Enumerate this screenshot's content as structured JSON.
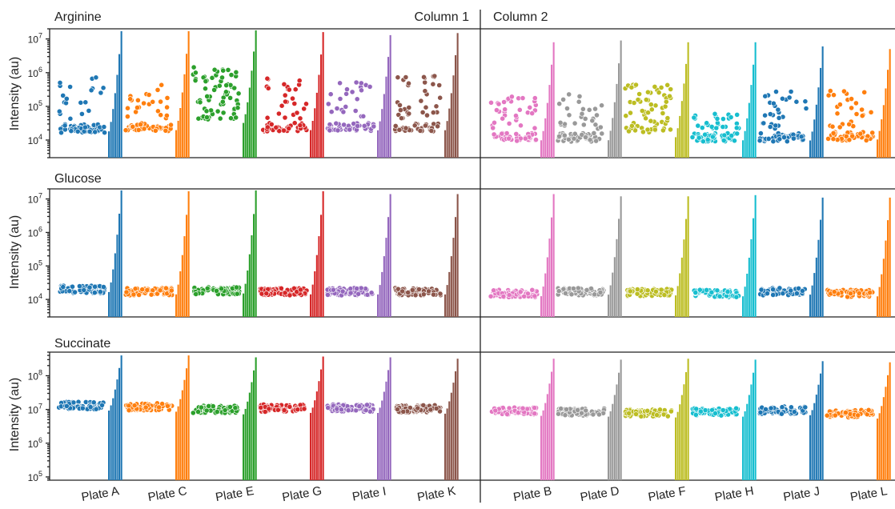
{
  "chart_data": {
    "type": "scatter",
    "column_headers": [
      "Column 1",
      "Column 2"
    ],
    "ylabel": "Intensity (au)",
    "yscale": "log",
    "panels": [
      {
        "title": "Arginine",
        "ylim": [
          3000,
          20000000
        ],
        "ticks": [
          {
            "value": 10000,
            "base": "10",
            "exp": "4"
          },
          {
            "value": 100000,
            "base": "10",
            "exp": "5"
          },
          {
            "value": 1000000,
            "base": "10",
            "exp": "6"
          },
          {
            "value": 10000000,
            "base": "10",
            "exp": "7"
          }
        ],
        "series": [
          {
            "plate": "Plate A",
            "color": "#1f77b4",
            "spread": "bimodal",
            "low": 22000,
            "high": 800000,
            "bar_max": 17000000
          },
          {
            "plate": "Plate C",
            "color": "#ff7f0e",
            "spread": "bimodal",
            "low": 24000,
            "high": 500000,
            "bar_max": 17000000
          },
          {
            "plate": "Plate E",
            "color": "#2ca02c",
            "spread": "wide",
            "low": 40000,
            "high": 1500000,
            "bar_max": 18000000
          },
          {
            "plate": "Plate G",
            "color": "#d62728",
            "spread": "bimodal",
            "low": 24000,
            "high": 700000,
            "bar_max": 16000000
          },
          {
            "plate": "Plate I",
            "color": "#9467bd",
            "spread": "bimodal",
            "low": 24000,
            "high": 600000,
            "bar_max": 13000000
          },
          {
            "plate": "Plate K",
            "color": "#8c564b",
            "spread": "bimodal",
            "low": 24000,
            "high": 1000000,
            "bar_max": 15000000
          },
          {
            "plate": "Plate B",
            "color": "#e377c2",
            "spread": "bimodal",
            "low": 12000,
            "high": 200000,
            "bar_max": 8000000
          },
          {
            "plate": "Plate D",
            "color": "#999999",
            "spread": "bimodal",
            "low": 12000,
            "high": 250000,
            "bar_max": 9000000
          },
          {
            "plate": "Plate F",
            "color": "#bcbd22",
            "spread": "wide",
            "low": 15000,
            "high": 450000,
            "bar_max": 8000000
          },
          {
            "plate": "Plate H",
            "color": "#17becf",
            "spread": "bimodal",
            "low": 12000,
            "high": 60000,
            "bar_max": 8000000
          },
          {
            "plate": "Plate J",
            "color": "#1f77b4",
            "spread": "bimodal",
            "low": 12000,
            "high": 300000,
            "bar_max": 6000000
          },
          {
            "plate": "Plate L",
            "color": "#ff7f0e",
            "spread": "bimodal",
            "low": 13000,
            "high": 300000,
            "bar_max": 5000000
          }
        ]
      },
      {
        "title": "Glucose",
        "ylim": [
          3000,
          20000000
        ],
        "ticks": [
          {
            "value": 10000,
            "base": "10",
            "exp": "4"
          },
          {
            "value": 100000,
            "base": "10",
            "exp": "5"
          },
          {
            "value": 1000000,
            "base": "10",
            "exp": "6"
          },
          {
            "value": 10000000,
            "base": "10",
            "exp": "7"
          }
        ],
        "series": [
          {
            "plate": "Plate A",
            "color": "#1f77b4",
            "spread": "tight",
            "low": 20000,
            "bar_max": 18000000
          },
          {
            "plate": "Plate C",
            "color": "#ff7f0e",
            "spread": "tight",
            "low": 17000,
            "bar_max": 17000000
          },
          {
            "plate": "Plate E",
            "color": "#2ca02c",
            "spread": "tight",
            "low": 18000,
            "bar_max": 18000000
          },
          {
            "plate": "Plate G",
            "color": "#d62728",
            "spread": "tight",
            "low": 17000,
            "bar_max": 17000000
          },
          {
            "plate": "Plate I",
            "color": "#9467bd",
            "spread": "tight",
            "low": 17000,
            "bar_max": 14000000
          },
          {
            "plate": "Plate K",
            "color": "#8c564b",
            "spread": "tight",
            "low": 17000,
            "bar_max": 14000000
          },
          {
            "plate": "Plate B",
            "color": "#e377c2",
            "spread": "tight",
            "low": 15000,
            "bar_max": 14000000
          },
          {
            "plate": "Plate D",
            "color": "#999999",
            "spread": "tight",
            "low": 17000,
            "bar_max": 12000000
          },
          {
            "plate": "Plate F",
            "color": "#bcbd22",
            "spread": "tight",
            "low": 16000,
            "bar_max": 12000000
          },
          {
            "plate": "Plate H",
            "color": "#17becf",
            "spread": "tight",
            "low": 15000,
            "bar_max": 13000000
          },
          {
            "plate": "Plate J",
            "color": "#1f77b4",
            "spread": "tight",
            "low": 17000,
            "bar_max": 11000000
          },
          {
            "plate": "Plate L",
            "color": "#ff7f0e",
            "spread": "tight",
            "low": 15000,
            "bar_max": 11000000
          }
        ]
      },
      {
        "title": "Succinate",
        "ylim": [
          80000,
          500000000
        ],
        "ticks": [
          {
            "value": 100000,
            "base": "10",
            "exp": "5"
          },
          {
            "value": 1000000,
            "base": "10",
            "exp": "6"
          },
          {
            "value": 10000000,
            "base": "10",
            "exp": "7"
          },
          {
            "value": 100000000,
            "base": "10",
            "exp": "8"
          }
        ],
        "series": [
          {
            "plate": "Plate A",
            "color": "#1f77b4",
            "spread": "tight",
            "low": 13000000,
            "bar_max": 400000000
          },
          {
            "plate": "Plate C",
            "color": "#ff7f0e",
            "spread": "tight",
            "low": 12000000,
            "bar_max": 400000000
          },
          {
            "plate": "Plate E",
            "color": "#2ca02c",
            "spread": "tight",
            "low": 10000000,
            "bar_max": 350000000
          },
          {
            "plate": "Plate G",
            "color": "#d62728",
            "spread": "tight",
            "low": 11000000,
            "bar_max": 370000000
          },
          {
            "plate": "Plate I",
            "color": "#9467bd",
            "spread": "tight",
            "low": 11000000,
            "bar_max": 350000000
          },
          {
            "plate": "Plate K",
            "color": "#8c564b",
            "spread": "tight",
            "low": 10500000,
            "bar_max": 320000000
          },
          {
            "plate": "Plate B",
            "color": "#e377c2",
            "spread": "tight",
            "low": 9000000,
            "bar_max": 320000000
          },
          {
            "plate": "Plate D",
            "color": "#999999",
            "spread": "tight",
            "low": 8500000,
            "bar_max": 300000000
          },
          {
            "plate": "Plate F",
            "color": "#bcbd22",
            "spread": "tight",
            "low": 8000000,
            "bar_max": 320000000
          },
          {
            "plate": "Plate H",
            "color": "#17becf",
            "spread": "tight",
            "low": 8500000,
            "bar_max": 300000000
          },
          {
            "plate": "Plate J",
            "color": "#1f77b4",
            "spread": "tight",
            "low": 9500000,
            "bar_max": 270000000
          },
          {
            "plate": "Plate L",
            "color": "#ff7f0e",
            "spread": "tight",
            "low": 7500000,
            "bar_max": 250000000
          }
        ]
      }
    ]
  }
}
